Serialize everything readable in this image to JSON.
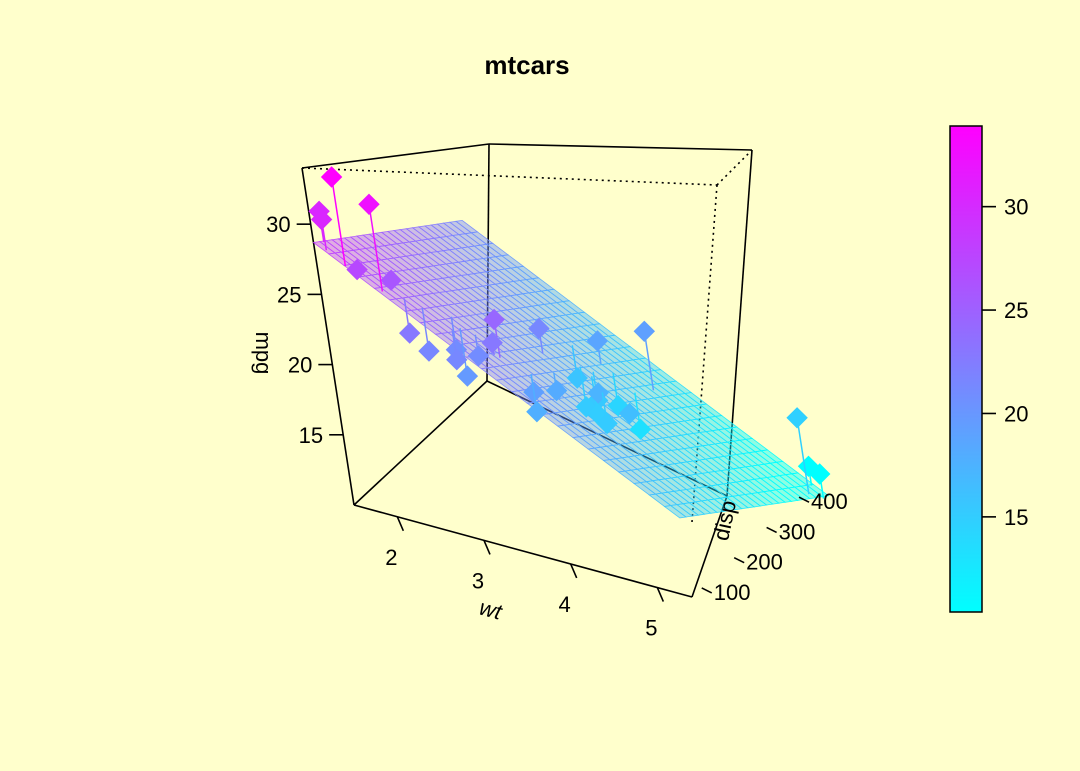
{
  "chart_data": {
    "type": "scatter3d",
    "title": "mtcars",
    "xlabel": "wt",
    "ylabel": "disp",
    "zlabel": "mpg",
    "x_ticks": [
      "2",
      "3",
      "4",
      "5"
    ],
    "y_ticks": [
      "100",
      "200",
      "300",
      "400"
    ],
    "z_ticks": [
      "15",
      "20",
      "25",
      "30"
    ],
    "xlim": [
      1.5,
      5.4
    ],
    "ylim": [
      70,
      480
    ],
    "zlim": [
      10,
      34
    ],
    "colorkey": {
      "ticks": [
        "15",
        "20",
        "25",
        "30"
      ],
      "range": [
        10.4,
        33.9
      ],
      "low_color": "#00FFFF",
      "high_color": "#FF00FF"
    },
    "fit_surface": {
      "intercept": 34.96,
      "wt": -3.35,
      "disp": -0.0177
    },
    "points": [
      {
        "wt": 2.62,
        "disp": 160,
        "mpg": 21.0
      },
      {
        "wt": 2.875,
        "disp": 160,
        "mpg": 21.0
      },
      {
        "wt": 2.32,
        "disp": 108,
        "mpg": 22.8
      },
      {
        "wt": 3.215,
        "disp": 258,
        "mpg": 21.4
      },
      {
        "wt": 3.44,
        "disp": 360,
        "mpg": 18.7
      },
      {
        "wt": 3.46,
        "disp": 225,
        "mpg": 18.1
      },
      {
        "wt": 3.57,
        "disp": 360,
        "mpg": 14.3
      },
      {
        "wt": 3.19,
        "disp": 146.7,
        "mpg": 24.4
      },
      {
        "wt": 3.15,
        "disp": 140.8,
        "mpg": 22.8
      },
      {
        "wt": 3.44,
        "disp": 167.6,
        "mpg": 19.2
      },
      {
        "wt": 3.44,
        "disp": 167.6,
        "mpg": 17.8
      },
      {
        "wt": 4.07,
        "disp": 275.8,
        "mpg": 16.4
      },
      {
        "wt": 3.73,
        "disp": 275.8,
        "mpg": 17.3
      },
      {
        "wt": 3.78,
        "disp": 275.8,
        "mpg": 15.2
      },
      {
        "wt": 5.25,
        "disp": 472,
        "mpg": 10.4
      },
      {
        "wt": 5.424,
        "disp": 460,
        "mpg": 10.4
      },
      {
        "wt": 5.345,
        "disp": 440,
        "mpg": 14.7
      },
      {
        "wt": 2.2,
        "disp": 78.7,
        "mpg": 32.4
      },
      {
        "wt": 1.615,
        "disp": 75.7,
        "mpg": 30.4
      },
      {
        "wt": 1.835,
        "disp": 71.1,
        "mpg": 33.9
      },
      {
        "wt": 2.465,
        "disp": 120.1,
        "mpg": 21.5
      },
      {
        "wt": 3.52,
        "disp": 318,
        "mpg": 15.5
      },
      {
        "wt": 3.435,
        "disp": 304,
        "mpg": 15.2
      },
      {
        "wt": 3.84,
        "disp": 350,
        "mpg": 13.3
      },
      {
        "wt": 3.845,
        "disp": 400,
        "mpg": 19.2
      },
      {
        "wt": 1.935,
        "disp": 79,
        "mpg": 27.3
      },
      {
        "wt": 2.14,
        "disp": 120.3,
        "mpg": 26.0
      },
      {
        "wt": 1.513,
        "disp": 95.1,
        "mpg": 30.4
      },
      {
        "wt": 3.17,
        "disp": 351,
        "mpg": 15.8
      },
      {
        "wt": 2.77,
        "disp": 145,
        "mpg": 19.7
      },
      {
        "wt": 3.57,
        "disp": 301,
        "mpg": 15.0
      },
      {
        "wt": 2.78,
        "disp": 121,
        "mpg": 21.4
      }
    ]
  }
}
